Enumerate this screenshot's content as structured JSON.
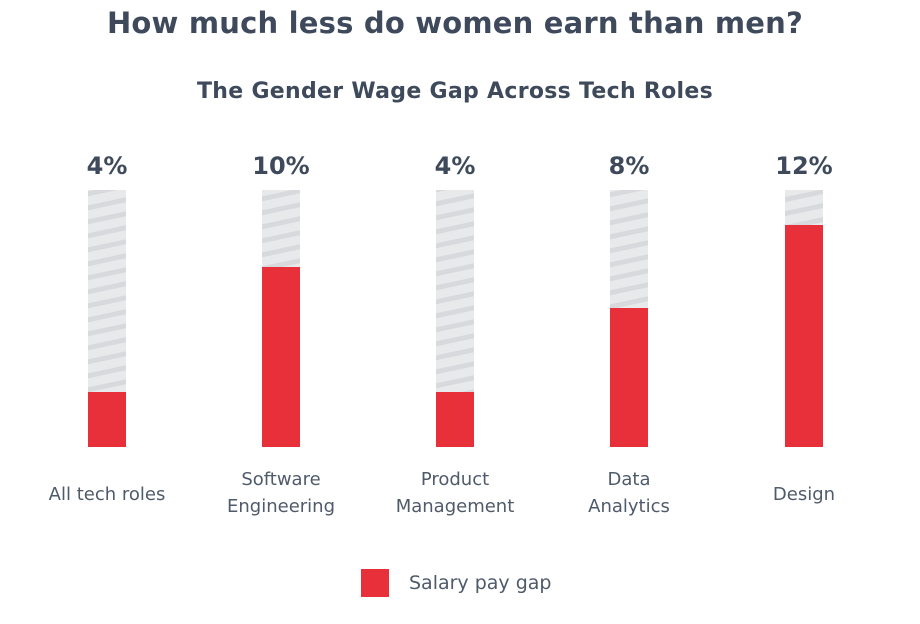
{
  "colors": {
    "text": "#3e4a5b",
    "label_text": "#4f5a6a",
    "gap_red": "#e8303b",
    "track_light": "#e8e9eb",
    "track_stripe": "#d8d9dc"
  },
  "chart_data": {
    "type": "bar",
    "title": "How much less do women earn than men?",
    "subtitle": "The Gender Wage Gap Across Tech Roles",
    "xlabel": "",
    "ylabel": "",
    "grid": false,
    "categories": [
      [
        "All tech roles"
      ],
      [
        "Software",
        "Engineering"
      ],
      [
        "Product",
        "Management"
      ],
      [
        "Data",
        "Analytics"
      ],
      [
        "Design"
      ]
    ],
    "values": [
      4,
      10,
      4,
      8,
      12
    ],
    "value_labels": [
      "4%",
      "10%",
      "4%",
      "8%",
      "12%"
    ],
    "fill_fraction": [
      0.214,
      0.7,
      0.214,
      0.54,
      0.864
    ],
    "series": [
      {
        "name": "Salary pay gap",
        "values": [
          4,
          10,
          4,
          8,
          12
        ]
      }
    ],
    "legend": {
      "position": "bottom",
      "entries": [
        "Salary pay gap"
      ]
    }
  }
}
